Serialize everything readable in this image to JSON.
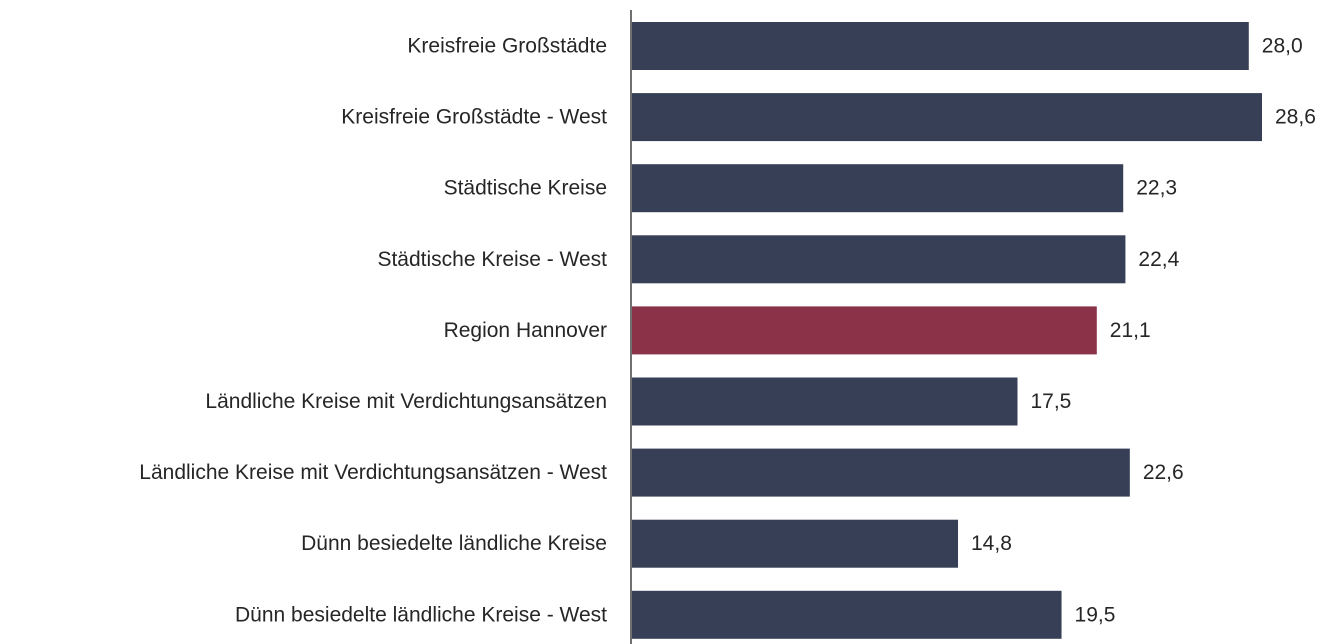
{
  "chart_data": {
    "type": "bar",
    "orientation": "horizontal",
    "categories": [
      "Kreisfreie Großstädte",
      "Kreisfreie Großstädte - West",
      "Städtische Kreise",
      "Städtische Kreise - West",
      "Region Hannover",
      "Ländliche Kreise mit Verdichtungsansätzen",
      "Ländliche Kreise mit Verdichtungsansätzen - West",
      "Dünn besiedelte ländliche Kreise",
      "Dünn besiedelte ländliche Kreise - West"
    ],
    "values": [
      28.0,
      28.6,
      22.3,
      22.4,
      21.1,
      17.5,
      22.6,
      14.8,
      19.5
    ],
    "value_labels": [
      "28,0",
      "28,6",
      "22,3",
      "22,4",
      "21,1",
      "17,5",
      "22,6",
      "14,8",
      "19,5"
    ],
    "colors": [
      "#373f56",
      "#373f56",
      "#373f56",
      "#373f56",
      "#8b3248",
      "#373f56",
      "#373f56",
      "#373f56",
      "#373f56"
    ]
  }
}
